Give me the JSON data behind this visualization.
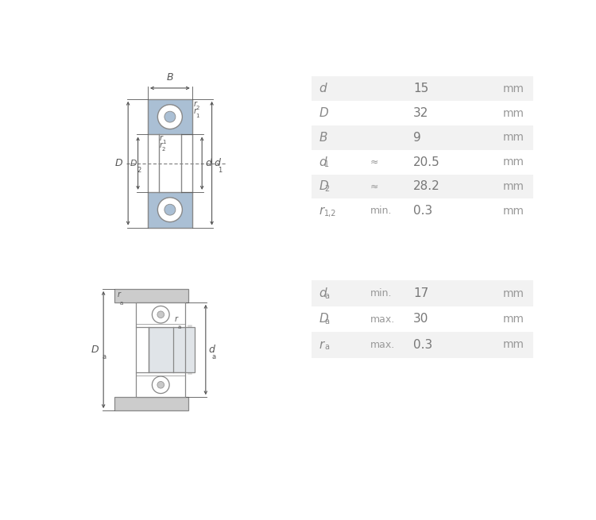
{
  "bg_color": "#ffffff",
  "table1": {
    "rows": [
      {
        "param": "d",
        "sub": "",
        "qualifier": "",
        "value": "15",
        "unit": "mm"
      },
      {
        "param": "D",
        "sub": "",
        "qualifier": "",
        "value": "32",
        "unit": "mm"
      },
      {
        "param": "B",
        "sub": "",
        "qualifier": "",
        "value": "9",
        "unit": "mm"
      },
      {
        "param": "d",
        "sub": "1",
        "qualifier": "≈",
        "value": "20.5",
        "unit": "mm"
      },
      {
        "param": "D",
        "sub": "2",
        "qualifier": "≈",
        "value": "28.2",
        "unit": "mm"
      },
      {
        "param": "r",
        "sub": "1,2",
        "qualifier": "min.",
        "value": "0.3",
        "unit": "mm"
      }
    ],
    "shaded_rows": [
      0,
      2,
      4
    ],
    "bg_shaded": "#f2f2f2",
    "bg_white": "#ffffff",
    "param_color": "#888888",
    "value_color": "#777777",
    "unit_color": "#999999",
    "qualifier_color": "#999999"
  },
  "table2": {
    "rows": [
      {
        "param": "d",
        "sub": "a",
        "qualifier": "min.",
        "value": "17",
        "unit": "mm"
      },
      {
        "param": "D",
        "sub": "a",
        "qualifier": "max.",
        "value": "30",
        "unit": "mm"
      },
      {
        "param": "r",
        "sub": "a",
        "qualifier": "max.",
        "value": "0.3",
        "unit": "mm"
      }
    ],
    "shaded_rows": [
      0,
      2
    ],
    "bg_shaded": "#f2f2f2",
    "bg_white": "#ffffff",
    "param_color": "#888888",
    "value_color": "#777777",
    "unit_color": "#999999",
    "qualifier_color": "#999999"
  },
  "line_color": "#888888",
  "blue_fill": "#aabfd4",
  "gray_fill": "#cccccc",
  "silver_fill": "#e0e4e8",
  "white_fill": "#ffffff",
  "dim_line_color": "#555555",
  "label_color": "#555555"
}
